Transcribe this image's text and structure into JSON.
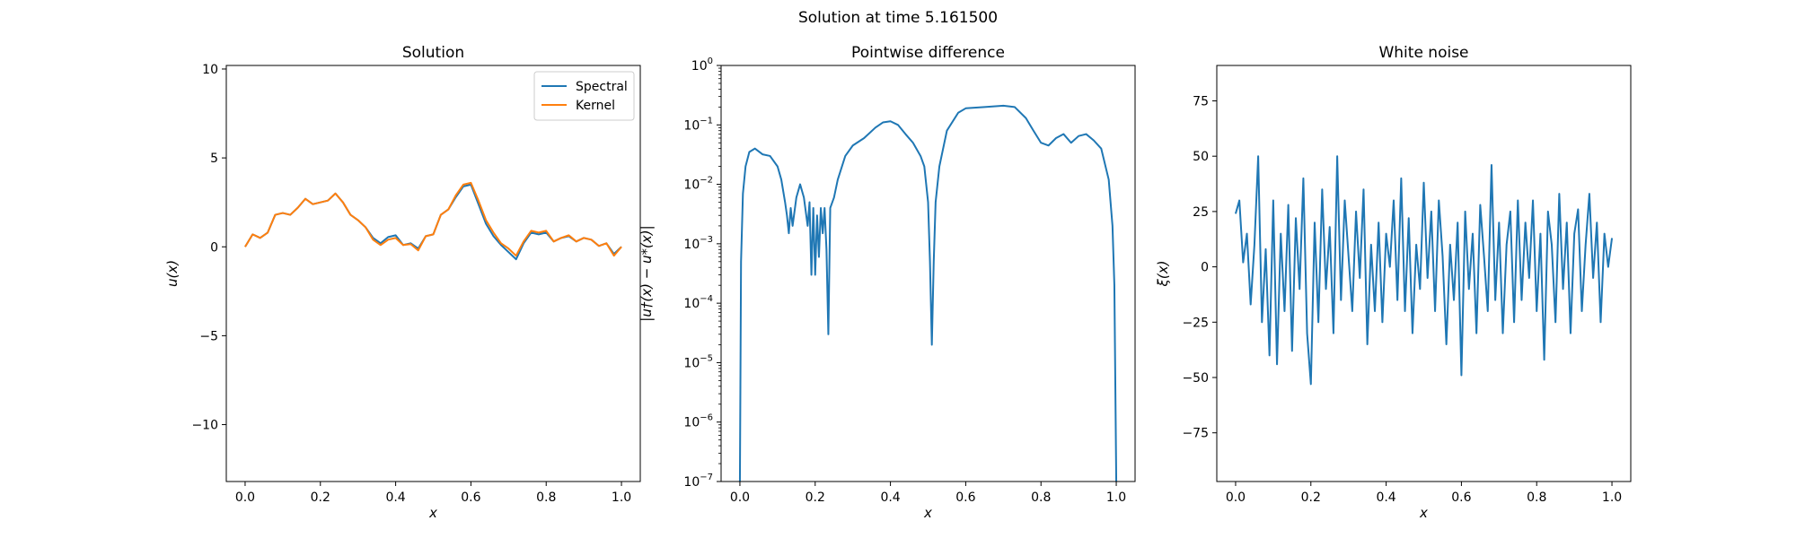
{
  "figure": {
    "suptitle": "Solution at time 5.161500"
  },
  "chart_data": [
    {
      "type": "line",
      "title": "Solution",
      "xlabel": "x",
      "ylabel": "u(x)",
      "xlim": [
        -0.05,
        1.05
      ],
      "ylim": [
        -13.2,
        10.2
      ],
      "xticks": [
        0.0,
        0.2,
        0.4,
        0.6,
        0.8,
        1.0
      ],
      "xtick_labels": [
        "0.0",
        "0.2",
        "0.4",
        "0.6",
        "0.8",
        "1.0"
      ],
      "yticks": [
        -10,
        -5,
        0,
        5,
        10
      ],
      "ytick_labels": [
        "−10",
        "−5",
        "0",
        "5",
        "10"
      ],
      "grid": false,
      "legend": "top-right",
      "series": [
        {
          "name": "Spectral",
          "color": "#1f77b4",
          "x": [
            0,
            0.02,
            0.04,
            0.06,
            0.08,
            0.1,
            0.12,
            0.14,
            0.16,
            0.18,
            0.2,
            0.22,
            0.24,
            0.26,
            0.28,
            0.3,
            0.32,
            0.34,
            0.36,
            0.38,
            0.4,
            0.42,
            0.44,
            0.46,
            0.48,
            0.5,
            0.52,
            0.54,
            0.56,
            0.58,
            0.6,
            0.62,
            0.64,
            0.66,
            0.68,
            0.7,
            0.72,
            0.74,
            0.76,
            0.78,
            0.8,
            0.82,
            0.84,
            0.86,
            0.88,
            0.9,
            0.92,
            0.94,
            0.96,
            0.98,
            1.0
          ],
          "y": [
            0,
            0.7,
            0.5,
            0.8,
            1.8,
            1.9,
            1.8,
            2.2,
            2.7,
            2.4,
            2.5,
            2.6,
            3.0,
            2.5,
            1.8,
            1.5,
            1.1,
            0.5,
            0.2,
            0.55,
            0.65,
            0.1,
            0.2,
            -0.1,
            0.6,
            0.7,
            1.8,
            2.1,
            2.8,
            3.4,
            3.5,
            2.4,
            1.3,
            0.6,
            0.1,
            -0.3,
            -0.7,
            0.2,
            0.8,
            0.7,
            0.8,
            0.3,
            0.5,
            0.6,
            0.3,
            0.5,
            0.4,
            0.05,
            0.2,
            -0.4,
            0.0
          ]
        },
        {
          "name": "Kernel",
          "color": "#ff7f0e",
          "x": [
            0,
            0.02,
            0.04,
            0.06,
            0.08,
            0.1,
            0.12,
            0.14,
            0.16,
            0.18,
            0.2,
            0.22,
            0.24,
            0.26,
            0.28,
            0.3,
            0.32,
            0.34,
            0.36,
            0.38,
            0.4,
            0.42,
            0.44,
            0.46,
            0.48,
            0.5,
            0.52,
            0.54,
            0.56,
            0.58,
            0.6,
            0.62,
            0.64,
            0.66,
            0.68,
            0.7,
            0.72,
            0.74,
            0.76,
            0.78,
            0.8,
            0.82,
            0.84,
            0.86,
            0.88,
            0.9,
            0.92,
            0.94,
            0.96,
            0.98,
            1.0
          ],
          "y": [
            0,
            0.7,
            0.5,
            0.8,
            1.8,
            1.9,
            1.8,
            2.2,
            2.7,
            2.4,
            2.5,
            2.6,
            3.0,
            2.5,
            1.8,
            1.5,
            1.1,
            0.4,
            0.1,
            0.4,
            0.5,
            0.1,
            0.15,
            -0.2,
            0.6,
            0.7,
            1.8,
            2.1,
            2.9,
            3.5,
            3.6,
            2.6,
            1.5,
            0.8,
            0.2,
            -0.1,
            -0.5,
            0.3,
            0.9,
            0.8,
            0.9,
            0.3,
            0.5,
            0.65,
            0.3,
            0.5,
            0.4,
            0.05,
            0.2,
            -0.5,
            0.0
          ]
        }
      ]
    },
    {
      "type": "line",
      "title": "Pointwise difference",
      "xlabel": "x",
      "ylabel": "|u†(x) − u*(x)|",
      "yscale": "log",
      "xlim": [
        -0.05,
        1.05
      ],
      "ylim": [
        1e-07,
        1
      ],
      "xticks": [
        0.0,
        0.2,
        0.4,
        0.6,
        0.8,
        1.0
      ],
      "xtick_labels": [
        "0.0",
        "0.2",
        "0.4",
        "0.6",
        "0.8",
        "1.0"
      ],
      "yticks": [
        1e-07,
        1e-06,
        1e-05,
        0.0001,
        0.001,
        0.01,
        0.1,
        1
      ],
      "ytick_base": "10",
      "ytick_exponents": [
        "−7",
        "−6",
        "−5",
        "−4",
        "−3",
        "−2",
        "−1",
        "0"
      ],
      "grid": false,
      "series": [
        {
          "color": "#1f77b4",
          "x": [
            0,
            0.003,
            0.008,
            0.015,
            0.025,
            0.04,
            0.06,
            0.08,
            0.1,
            0.11,
            0.12,
            0.125,
            0.13,
            0.135,
            0.14,
            0.15,
            0.16,
            0.17,
            0.18,
            0.185,
            0.19,
            0.195,
            0.2,
            0.205,
            0.21,
            0.215,
            0.22,
            0.225,
            0.23,
            0.235,
            0.24,
            0.25,
            0.26,
            0.28,
            0.3,
            0.33,
            0.36,
            0.38,
            0.4,
            0.42,
            0.44,
            0.46,
            0.48,
            0.49,
            0.5,
            0.505,
            0.51,
            0.515,
            0.52,
            0.53,
            0.55,
            0.58,
            0.6,
            0.65,
            0.7,
            0.73,
            0.76,
            0.78,
            0.8,
            0.82,
            0.84,
            0.86,
            0.88,
            0.9,
            0.92,
            0.94,
            0.96,
            0.98,
            0.99,
            0.995,
            1.0
          ],
          "y": [
            1e-07,
            0.0005,
            0.007,
            0.02,
            0.035,
            0.04,
            0.032,
            0.03,
            0.02,
            0.012,
            0.005,
            0.003,
            0.0015,
            0.004,
            0.002,
            0.006,
            0.01,
            0.006,
            0.002,
            0.005,
            0.0003,
            0.004,
            0.0003,
            0.003,
            0.0006,
            0.004,
            0.0015,
            0.004,
            0.0008,
            3e-05,
            0.004,
            0.006,
            0.012,
            0.03,
            0.045,
            0.06,
            0.09,
            0.11,
            0.115,
            0.1,
            0.07,
            0.05,
            0.03,
            0.02,
            0.005,
            0.0005,
            2e-05,
            0.0005,
            0.005,
            0.02,
            0.08,
            0.16,
            0.19,
            0.2,
            0.21,
            0.2,
            0.13,
            0.08,
            0.05,
            0.045,
            0.06,
            0.07,
            0.05,
            0.065,
            0.07,
            0.055,
            0.04,
            0.012,
            0.002,
            0.0002,
            1e-07
          ]
        }
      ]
    },
    {
      "type": "line",
      "title": "White noise",
      "xlabel": "x",
      "ylabel": "ξ(x)",
      "xlim": [
        -0.05,
        1.05
      ],
      "ylim": [
        -97,
        91
      ],
      "xticks": [
        0.0,
        0.2,
        0.4,
        0.6,
        0.8,
        1.0
      ],
      "xtick_labels": [
        "0.0",
        "0.2",
        "0.4",
        "0.6",
        "0.8",
        "1.0"
      ],
      "yticks": [
        -75,
        -50,
        -25,
        0,
        25,
        50,
        75
      ],
      "ytick_labels": [
        "−75",
        "−50",
        "−25",
        "0",
        "25",
        "50",
        "75"
      ],
      "grid": false,
      "series": [
        {
          "color": "#1f77b4",
          "x": [
            0,
            0.01,
            0.02,
            0.03,
            0.04,
            0.05,
            0.06,
            0.07,
            0.08,
            0.09,
            0.1,
            0.11,
            0.12,
            0.13,
            0.14,
            0.15,
            0.16,
            0.17,
            0.18,
            0.19,
            0.2,
            0.21,
            0.22,
            0.23,
            0.24,
            0.25,
            0.26,
            0.27,
            0.28,
            0.29,
            0.3,
            0.31,
            0.32,
            0.33,
            0.34,
            0.35,
            0.36,
            0.37,
            0.38,
            0.39,
            0.4,
            0.41,
            0.42,
            0.43,
            0.44,
            0.45,
            0.46,
            0.47,
            0.48,
            0.49,
            0.5,
            0.51,
            0.52,
            0.53,
            0.54,
            0.55,
            0.56,
            0.57,
            0.58,
            0.59,
            0.6,
            0.61,
            0.62,
            0.63,
            0.64,
            0.65,
            0.66,
            0.67,
            0.68,
            0.69,
            0.7,
            0.71,
            0.72,
            0.73,
            0.74,
            0.75,
            0.76,
            0.77,
            0.78,
            0.79,
            0.8,
            0.81,
            0.82,
            0.83,
            0.84,
            0.85,
            0.86,
            0.87,
            0.88,
            0.89,
            0.9,
            0.91,
            0.92,
            0.93,
            0.94,
            0.95,
            0.96,
            0.97,
            0.98,
            0.99,
            1.0
          ],
          "y": [
            24,
            30,
            2,
            15,
            -17,
            10,
            50,
            -25,
            8,
            -40,
            30,
            -44,
            15,
            -20,
            28,
            -38,
            22,
            -10,
            40,
            -30,
            -53,
            20,
            -25,
            35,
            -10,
            18,
            -30,
            50,
            -15,
            30,
            5,
            -20,
            25,
            -5,
            35,
            -35,
            10,
            -20,
            20,
            -25,
            15,
            0,
            30,
            -15,
            40,
            -20,
            22,
            -30,
            10,
            -10,
            38,
            -5,
            25,
            -20,
            30,
            5,
            -35,
            10,
            -15,
            20,
            -49,
            25,
            -10,
            15,
            -30,
            28,
            5,
            -20,
            46,
            -15,
            20,
            -30,
            10,
            25,
            -25,
            30,
            -15,
            20,
            -5,
            30,
            -20,
            15,
            -42,
            25,
            10,
            -25,
            33,
            -10,
            20,
            -30,
            15,
            26,
            -20,
            10,
            33,
            -5,
            20,
            -25,
            15,
            0,
            13
          ]
        }
      ]
    }
  ]
}
